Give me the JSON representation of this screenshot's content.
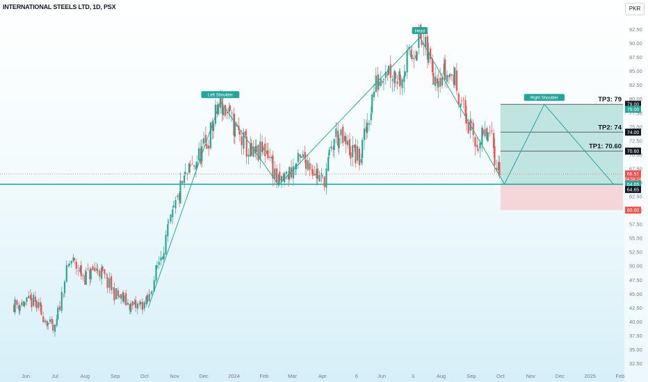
{
  "header": {
    "title": "INTERNATIONAL STEELS LTD, 1D, PSX",
    "currency": "PKR"
  },
  "colors": {
    "up": "#26a69a",
    "down": "#ef5350",
    "support": "#26a69a",
    "target_zone": "#b6e1dc",
    "stop_zone": "#f6d3d5",
    "pattern": "#26a69a"
  },
  "chart_data": {
    "type": "candlestick",
    "symbol": "INTERNATIONAL STEELS LTD",
    "timeframe": "1D",
    "exchange": "PSX",
    "currency": "PKR",
    "y_axis": {
      "position": "right",
      "min": 32.5,
      "max": 92.5,
      "step": 2.5,
      "ticks": [
        "92.50",
        "90.00",
        "87.50",
        "85.00",
        "82.50",
        "80.00",
        "77.50",
        "75.00",
        "72.50",
        "70.00",
        "67.50",
        "65.00",
        "62.50",
        "60.00",
        "57.50",
        "55.00",
        "52.50",
        "50.00",
        "47.50",
        "45.00",
        "42.50",
        "40.00",
        "37.50",
        "35.00",
        "32.50"
      ]
    },
    "x_axis": {
      "ticks": [
        {
          "label": "Jun",
          "date": "2023-06-01"
        },
        {
          "label": "Jul",
          "date": "2023-07-01"
        },
        {
          "label": "Aug",
          "date": "2023-08-01"
        },
        {
          "label": "Sep",
          "date": "2023-09-01"
        },
        {
          "label": "Oct",
          "date": "2023-10-01"
        },
        {
          "label": "Nov",
          "date": "2023-11-01"
        },
        {
          "label": "Dec",
          "date": "2023-12-01"
        },
        {
          "label": "2024",
          "date": "2024-01-01"
        },
        {
          "label": "Feb",
          "date": "2024-02-01"
        },
        {
          "label": "Mar",
          "date": "2024-03-01"
        },
        {
          "label": "Apr",
          "date": "2024-04-01"
        },
        {
          "label": "6",
          "date": "2024-05-06"
        },
        {
          "label": "Jun",
          "date": "2024-06-01"
        },
        {
          "label": "3",
          "date": "2024-07-03"
        },
        {
          "label": "Aug",
          "date": "2024-08-01"
        },
        {
          "label": "Sep",
          "date": "2024-09-01"
        },
        {
          "label": "Oct",
          "date": "2024-10-01"
        },
        {
          "label": "Nov",
          "date": "2024-11-01"
        },
        {
          "label": "Dec",
          "date": "2024-12-01"
        },
        {
          "label": "2025",
          "date": "2025-01-01"
        },
        {
          "label": "Feb",
          "date": "2025-02-01"
        }
      ]
    },
    "price_path": [
      {
        "date": "2023-05-20",
        "close": 43.0
      },
      {
        "date": "2023-06-10",
        "close": 43.5
      },
      {
        "date": "2023-07-01",
        "close": 38.0
      },
      {
        "date": "2023-07-12",
        "close": 48.0
      },
      {
        "date": "2023-07-18",
        "close": 51.0
      },
      {
        "date": "2023-08-01",
        "close": 48.0
      },
      {
        "date": "2023-08-15",
        "close": 49.5
      },
      {
        "date": "2023-09-01",
        "close": 45.0
      },
      {
        "date": "2023-09-20",
        "close": 42.5
      },
      {
        "date": "2023-10-05",
        "close": 43.5
      },
      {
        "date": "2023-10-15",
        "close": 50.0
      },
      {
        "date": "2023-11-10",
        "close": 65.0
      },
      {
        "date": "2023-12-05",
        "close": 72.0
      },
      {
        "date": "2023-12-18",
        "close": 79.5
      },
      {
        "date": "2024-01-05",
        "close": 74.0
      },
      {
        "date": "2024-01-20",
        "close": 69.5
      },
      {
        "date": "2024-02-05",
        "close": 71.0
      },
      {
        "date": "2024-02-16",
        "close": 64.5
      },
      {
        "date": "2024-03-05",
        "close": 68.0
      },
      {
        "date": "2024-03-15",
        "close": 69.5
      },
      {
        "date": "2024-04-02",
        "close": 65.0
      },
      {
        "date": "2024-04-15",
        "close": 73.5
      },
      {
        "date": "2024-05-10",
        "close": 69.0
      },
      {
        "date": "2024-05-25",
        "close": 82.0
      },
      {
        "date": "2024-06-05",
        "close": 86.0
      },
      {
        "date": "2024-06-20",
        "close": 84.0
      },
      {
        "date": "2024-07-10",
        "close": 91.0
      },
      {
        "date": "2024-07-25",
        "close": 85.0
      },
      {
        "date": "2024-08-15",
        "close": 84.0
      },
      {
        "date": "2024-08-28",
        "close": 76.0
      },
      {
        "date": "2024-09-05",
        "close": 72.0
      },
      {
        "date": "2024-09-20",
        "close": 73.5
      },
      {
        "date": "2024-10-01",
        "close": 66.5
      }
    ],
    "pattern": {
      "name": "Head and Shoulders",
      "points": [
        {
          "date": "2023-10-05",
          "price": 42.5
        },
        {
          "date": "2023-12-18",
          "price": 79.5
        },
        {
          "date": "2024-02-16",
          "price": 64.5
        },
        {
          "date": "2024-07-10",
          "price": 91.0
        },
        {
          "date": "2024-10-05",
          "price": 64.7
        },
        {
          "date": "2024-11-15",
          "price": 79.0
        },
        {
          "date": "2025-01-25",
          "price": 64.7
        }
      ],
      "labels": [
        {
          "text": "Left Shoulder",
          "date": "2023-12-18",
          "price": 79.5
        },
        {
          "text": "Head",
          "date": "2024-07-10",
          "price": 91.0
        },
        {
          "text": "Right Shoulder",
          "date": "2024-11-15",
          "price": 79.0
        }
      ]
    },
    "support_line": {
      "price": 64.65
    },
    "current_price_line": {
      "price": 66.51
    },
    "targets": [
      {
        "label": "TP1: 70.60",
        "price": 70.6,
        "badge": "70.60"
      },
      {
        "label": "TP2: 74",
        "price": 74.0,
        "badge": "74.00"
      },
      {
        "label": "TP3: 79",
        "price": 79.0,
        "badge": "79.00"
      }
    ],
    "target_zone": {
      "from_date": "2024-10-01",
      "top": 79.0,
      "bottom": 64.65
    },
    "stop_zone": {
      "from_date": "2024-10-01",
      "top": 64.65,
      "bottom": 60.0
    },
    "axis_badges": [
      {
        "text": "79.00",
        "price": 79.0,
        "color": "#131722"
      },
      {
        "text": "79.00",
        "price": 78.1,
        "color": "#26a69a"
      },
      {
        "text": "74.00",
        "price": 74.0,
        "color": "#131722"
      },
      {
        "text": "70.60",
        "price": 70.6,
        "color": "#131722"
      },
      {
        "text": "66.51",
        "price": 66.51,
        "color": "#ef5350"
      },
      {
        "text": "04:56:24",
        "price": 65.6,
        "color": "#ef5350"
      },
      {
        "text": "64.65",
        "price": 64.65,
        "color": "#26a69a"
      },
      {
        "text": "64.65",
        "price": 63.7,
        "color": "#131722"
      },
      {
        "text": "60.00",
        "price": 60.0,
        "color": "#ef5350"
      }
    ]
  }
}
